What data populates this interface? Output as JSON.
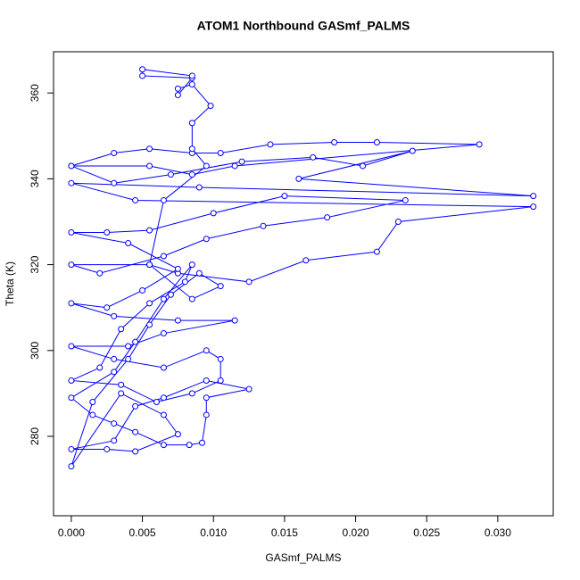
{
  "chart_data": {
    "type": "line",
    "markers": true,
    "title": "ATOM1 Northbound GASmf_PALMS",
    "x_label": "GASmf_PALMS",
    "y_label": "Theta (K)",
    "color": "#0000ff",
    "xlim": [
      -0.00125,
      0.0339
    ],
    "ylim": [
      261.5,
      369.6
    ],
    "xticks": [
      {
        "value": 0,
        "label": "0.000"
      },
      {
        "value": 0.005,
        "label": "0.005"
      },
      {
        "value": 0.01,
        "label": "0.010"
      },
      {
        "value": 0.015,
        "label": "0.015"
      },
      {
        "value": 0.02,
        "label": "0.020"
      },
      {
        "value": 0.025,
        "label": "0.025"
      },
      {
        "value": 0.03,
        "label": "0.030"
      }
    ],
    "yticks": [
      280,
      300,
      320,
      340,
      360
    ],
    "series": [
      {
        "x": [
          0,
          0.003,
          0.0055,
          0.0085,
          0.0105,
          0.014,
          0.0185,
          0.0215,
          0.0287,
          0.0115,
          0.0085,
          0.0055,
          0,
          0.003,
          0.007,
          0.012,
          0.017,
          0.0205,
          0.024,
          0.016,
          0.0325,
          0.009,
          0,
          0.0045,
          0.0325,
          0.023,
          0.0215,
          0.0165,
          0.0125,
          0.0075,
          0.0055,
          0,
          0.002,
          0.0065,
          0.0095,
          0.0135,
          0.018,
          0.0235,
          0.015,
          0.01,
          0.0055,
          0.0025,
          0,
          0.004,
          0.0075,
          0.005,
          0.0025,
          0,
          0.003,
          0.0075,
          0.0115,
          0.0065,
          0.004,
          0,
          0.003,
          0.0065,
          0.0095,
          0.0105,
          0.0105,
          0.0085,
          0.006,
          0.0035,
          0,
          0.002,
          0.0035,
          0.0055,
          0.008,
          0.0085,
          0.0065,
          0.0045,
          0.003,
          0,
          0.0015,
          0.003,
          0.0045,
          0.0065,
          0.0083,
          0.0092,
          0.0095,
          0.0095,
          0.0125,
          0.0095,
          0.0065,
          0.0045,
          0.003,
          0,
          0.0025,
          0.0045,
          0.0075,
          0.0065,
          0.0035,
          0,
          0.0015,
          0.004,
          0.0055,
          0.007,
          0.009,
          0.0105,
          0.0085,
          0.0055,
          0.0065,
          0.0095,
          0.0085,
          0.0085,
          0.0098,
          0.0085,
          0.0075,
          0.0075,
          0.0085,
          0.005,
          0.005,
          0.0085
        ],
        "values": [
          343,
          346,
          347,
          346,
          346,
          348,
          348.5,
          348.5,
          348,
          343,
          341,
          343,
          343,
          339,
          341,
          344,
          345,
          343,
          346.5,
          340,
          336,
          338,
          339,
          335,
          333.5,
          330,
          323,
          321,
          316,
          318,
          320,
          320,
          318,
          322,
          326,
          329,
          331,
          335,
          336,
          332,
          328,
          327.5,
          327.5,
          325,
          319,
          314,
          310,
          311,
          308,
          307,
          307,
          304,
          301,
          301,
          298,
          296,
          300,
          298,
          293,
          290,
          288,
          292,
          293,
          296,
          305,
          311,
          316,
          320,
          312,
          302,
          295,
          289,
          285,
          283,
          281,
          278,
          278,
          278.5,
          285,
          289,
          291,
          293,
          289,
          287,
          279,
          277,
          277,
          276.5,
          280.5,
          285,
          290,
          273,
          288,
          298,
          306,
          313,
          318,
          315,
          312,
          320,
          335,
          343,
          347,
          353,
          357,
          362,
          361,
          359.5,
          363.5,
          364,
          365.5,
          364
        ]
      }
    ]
  }
}
